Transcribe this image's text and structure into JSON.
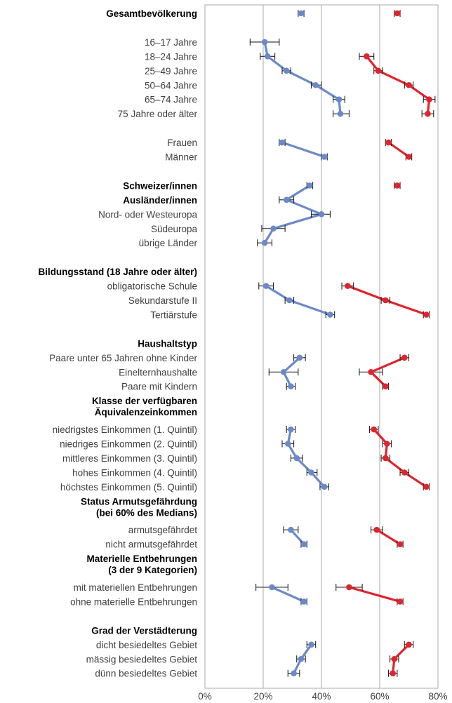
{
  "chart_data": {
    "type": "dot-plot",
    "orientation": "horizontal",
    "xlim": [
      0,
      80
    ],
    "x_ticks": [
      "0%",
      "20%",
      "40%",
      "60%",
      "80%"
    ],
    "grid_lines_at": [
      20,
      40,
      60
    ],
    "colors": {
      "series_a": "#6a89c8",
      "series_b": "#e0242c",
      "error_bar": "#222222",
      "grid": "#aaaaaa"
    },
    "rows": [
      {
        "label": "Gesamtbevölkerung",
        "bold": true,
        "a": 33,
        "a_lo": 32,
        "a_hi": 34,
        "b": 66,
        "b_lo": 65,
        "b_hi": 67
      },
      {
        "label": "",
        "bold": false
      },
      {
        "label": "16–17 Jahre",
        "bold": false,
        "a": 20.5,
        "a_lo": 15.5,
        "a_hi": 25.5
      },
      {
        "label": "18–24 Jahre",
        "bold": false,
        "a": 21.5,
        "a_lo": 19,
        "a_hi": 24,
        "b": 55.5,
        "b_lo": 53,
        "b_hi": 58
      },
      {
        "label": "25–49 Jahre",
        "bold": false,
        "a": 28,
        "a_lo": 26.5,
        "a_hi": 29.5,
        "b": 59.5,
        "b_lo": 58,
        "b_hi": 61
      },
      {
        "label": "50–64 Jahre",
        "bold": false,
        "a": 38,
        "a_lo": 36.5,
        "a_hi": 40,
        "b": 70,
        "b_lo": 68.5,
        "b_hi": 71.5
      },
      {
        "label": "65–74 Jahre",
        "bold": false,
        "a": 46,
        "a_lo": 44,
        "a_hi": 48,
        "b": 77,
        "b_lo": 75,
        "b_hi": 79
      },
      {
        "label": "75 Jahre oder älter",
        "bold": false,
        "a": 46.5,
        "a_lo": 44,
        "a_hi": 49.5,
        "b": 76.5,
        "b_lo": 74.5,
        "b_hi": 78.5
      },
      {
        "label": "",
        "bold": false
      },
      {
        "label": "Frauen",
        "bold": false,
        "a": 26.5,
        "a_lo": 25.5,
        "a_hi": 27.5,
        "b": 63,
        "b_lo": 62,
        "b_hi": 64
      },
      {
        "label": "Männer",
        "bold": false,
        "a": 41,
        "a_lo": 40,
        "a_hi": 42,
        "b": 70,
        "b_lo": 69,
        "b_hi": 71
      },
      {
        "label": "",
        "bold": false
      },
      {
        "label": "Schweizer/innen",
        "bold": true,
        "a": 36,
        "a_lo": 35,
        "a_hi": 37,
        "b": 66,
        "b_lo": 65,
        "b_hi": 67
      },
      {
        "label": "Ausländer/innen",
        "bold": true,
        "a": 28,
        "a_lo": 25.5,
        "a_hi": 30.5
      },
      {
        "label": "Nord- oder Westeuropa",
        "bold": false,
        "a": 40,
        "a_lo": 36.5,
        "a_hi": 43
      },
      {
        "label": "Südeuropa",
        "bold": false,
        "a": 23.5,
        "a_lo": 19.5,
        "a_hi": 27.5
      },
      {
        "label": "übrige Länder",
        "bold": false,
        "a": 20.5,
        "a_lo": 18,
        "a_hi": 23
      },
      {
        "label": "",
        "bold": false
      },
      {
        "label": "Bildungsstand (18 Jahre oder älter)",
        "bold": true
      },
      {
        "label": "obligatorische Schule",
        "bold": false,
        "a": 21,
        "a_lo": 18.5,
        "a_hi": 23.5,
        "b": 49,
        "b_lo": 47,
        "b_hi": 51
      },
      {
        "label": "Sekundarstufe II",
        "bold": false,
        "a": 29,
        "a_lo": 27.5,
        "a_hi": 30.5,
        "b": 62,
        "b_lo": 60.5,
        "b_hi": 63.5
      },
      {
        "label": "Tertiärstufe",
        "bold": false,
        "a": 43,
        "a_lo": 41.5,
        "a_hi": 44.5,
        "b": 76,
        "b_lo": 75,
        "b_hi": 77
      },
      {
        "label": "",
        "bold": false
      },
      {
        "label": "Haushaltstyp",
        "bold": true
      },
      {
        "label": "Paare unter 65 Jahren ohne Kinder",
        "bold": false,
        "a": 32.5,
        "a_lo": 30.5,
        "a_hi": 34.5,
        "b": 68.5,
        "b_lo": 67,
        "b_hi": 70
      },
      {
        "label": "Einelternhaushalte",
        "bold": false,
        "a": 27,
        "a_lo": 22,
        "a_hi": 32,
        "b": 57,
        "b_lo": 53,
        "b_hi": 61
      },
      {
        "label": "Paare mit Kindern",
        "bold": false,
        "a": 29.5,
        "a_lo": 28,
        "a_hi": 31,
        "b": 62,
        "b_lo": 61,
        "b_hi": 63
      },
      {
        "label": "Klasse der verfügbaren Äquivalenzeinkommen",
        "bold": true,
        "lines": [
          "Klasse der verfügbaren",
          "Äquivalenzeinkommen"
        ]
      },
      {
        "label": "",
        "bold": false
      },
      {
        "label": "niedrigstes Einkommen (1. Quintil)",
        "bold": false,
        "a": 29.5,
        "a_lo": 28,
        "a_hi": 31,
        "b": 58,
        "b_lo": 56.5,
        "b_hi": 59.5
      },
      {
        "label": "niedriges Einkommen (2. Quintil)",
        "bold": false,
        "a": 28.5,
        "a_lo": 26.5,
        "a_hi": 30.5,
        "b": 62.5,
        "b_lo": 61,
        "b_hi": 64
      },
      {
        "label": "mittleres Einkommen (3. Quintil)",
        "bold": false,
        "a": 31.5,
        "a_lo": 29.5,
        "a_hi": 33.5,
        "b": 62,
        "b_lo": 60.5,
        "b_hi": 63.5
      },
      {
        "label": "hohes Einkommen (4. Quintil)",
        "bold": false,
        "a": 36.5,
        "a_lo": 35,
        "a_hi": 38.5,
        "b": 68.5,
        "b_lo": 67,
        "b_hi": 70
      },
      {
        "label": "höchstes Einkommen (5. Quintil)",
        "bold": false,
        "a": 41,
        "a_lo": 39.5,
        "a_hi": 42.5,
        "b": 76,
        "b_lo": 75,
        "b_hi": 77
      },
      {
        "label": "Status Armutsgefährdung (bei 60% des Medians)",
        "bold": true,
        "lines": [
          "Status Armutsgefährdung",
          "(bei 60% des Medians)"
        ]
      },
      {
        "label": "",
        "bold": false
      },
      {
        "label": "armutsgefährdet",
        "bold": false,
        "a": 29.5,
        "a_lo": 27,
        "a_hi": 32,
        "b": 59,
        "b_lo": 57,
        "b_hi": 61
      },
      {
        "label": "nicht armutsgefährdet",
        "bold": false,
        "a": 34,
        "a_lo": 33,
        "a_hi": 35,
        "b": 67,
        "b_lo": 66,
        "b_hi": 68
      },
      {
        "label": "Materielle Entbehrungen (3 der 9 Kategorien)",
        "bold": true,
        "lines": [
          "Materielle Entbehrungen",
          "(3 der 9 Kategorien)"
        ]
      },
      {
        "label": "",
        "bold": false
      },
      {
        "label": "mit materiellen Entbehrungen",
        "bold": false,
        "a": 23,
        "a_lo": 17.5,
        "a_hi": 28.5,
        "b": 49.5,
        "b_lo": 45,
        "b_hi": 54
      },
      {
        "label": "ohne materielle Entbehrungen",
        "bold": false,
        "a": 34,
        "a_lo": 33,
        "a_hi": 35,
        "b": 67,
        "b_lo": 66,
        "b_hi": 68
      },
      {
        "label": "",
        "bold": false
      },
      {
        "label": "Grad der Verstädterung",
        "bold": true
      },
      {
        "label": "dicht besiedeltes Gebiet",
        "bold": false,
        "a": 36.5,
        "a_lo": 35,
        "a_hi": 38,
        "b": 70,
        "b_lo": 68.5,
        "b_hi": 71.5
      },
      {
        "label": "mässig besiedeltes Gebiet",
        "bold": false,
        "a": 33,
        "a_lo": 31.5,
        "a_hi": 34.5,
        "b": 65,
        "b_lo": 63.5,
        "b_hi": 66.5
      },
      {
        "label": "dünn besiedeltes Gebiet",
        "bold": false,
        "a": 30.5,
        "a_lo": 28.5,
        "a_hi": 32.5,
        "b": 64.5,
        "b_lo": 63,
        "b_hi": 66
      }
    ],
    "connections": {
      "a": [
        [
          2,
          3,
          4,
          5,
          6,
          7
        ],
        [
          9,
          10
        ],
        [
          12,
          13,
          14,
          15,
          16
        ],
        [
          19,
          20,
          21
        ],
        [
          24,
          25,
          26
        ],
        [
          29,
          30,
          31,
          32,
          33
        ],
        [
          36,
          37
        ],
        [
          40,
          41
        ],
        [
          44,
          45,
          46
        ]
      ],
      "b": [
        [
          3,
          4,
          5,
          6,
          7
        ],
        [
          9,
          10
        ],
        [
          19,
          20,
          21
        ],
        [
          24,
          25,
          26
        ],
        [
          29,
          30,
          31,
          32,
          33
        ],
        [
          36,
          37
        ],
        [
          40,
          41
        ],
        [
          44,
          45,
          46
        ]
      ]
    }
  }
}
